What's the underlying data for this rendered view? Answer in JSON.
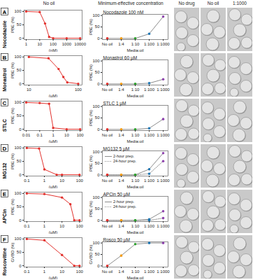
{
  "column_headers": [
    "No oil",
    "Minimum-effective concentration",
    "No drug",
    "No oil",
    "1:1000"
  ],
  "panels": [
    {
      "letter": "A",
      "label": "Nocodazole"
    },
    {
      "letter": "B",
      "label": "Monastrol"
    },
    {
      "letter": "C",
      "label": "STLC"
    },
    {
      "letter": "D",
      "label": "MG132"
    },
    {
      "letter": "E",
      "label": "APCin"
    },
    {
      "letter": "F",
      "label": "Roscovitine"
    }
  ],
  "chart_data": [
    {
      "type": "line",
      "x": [
        1,
        10,
        25,
        50,
        100,
        1000,
        10000
      ],
      "values": [
        100,
        98,
        55,
        5,
        0,
        0,
        0
      ],
      "log": "x",
      "xlim": [
        0.7,
        14000
      ],
      "xticks": [
        1,
        10,
        100,
        1000,
        10000
      ],
      "ylim": [
        -5,
        105
      ],
      "yticks": [
        0,
        50,
        100
      ],
      "xlabel": "(nM)",
      "ylabel": "PBE (%)",
      "color": "#e2312d",
      "marker": "circle"
    },
    {
      "type": "line",
      "categories": [
        "No oil",
        "1:4",
        "1:10",
        "1:100",
        "1:1000"
      ],
      "values": [
        0,
        0,
        0,
        20,
        95
      ],
      "colors": [
        "#e2312d",
        "#f39c12",
        "#2ca02c",
        "#1f77b4",
        "#8e44ad"
      ],
      "color": "#8c8c8c",
      "marker": "circle",
      "annotation": "Nocodazole 100 nM",
      "ylim": [
        -5,
        105
      ],
      "yticks": [
        0,
        50,
        100
      ],
      "xlabel": "Media:oil",
      "ylabel": "PBE (%)"
    },
    {
      "type": "line",
      "x": [
        10,
        25,
        40,
        50,
        60,
        100
      ],
      "values": [
        100,
        95,
        55,
        25,
        5,
        0
      ],
      "log": "x",
      "xlim": [
        8,
        120
      ],
      "xticks": [
        10,
        100
      ],
      "ylim": [
        -5,
        105
      ],
      "yticks": [
        0,
        50,
        100
      ],
      "xlabel": "(µM)",
      "ylabel": "PBE (%)",
      "color": "#e2312d",
      "marker": "circle"
    },
    {
      "type": "line",
      "categories": [
        "No oil",
        "1:4",
        "1:10",
        "1:100",
        "1:1000"
      ],
      "values": [
        0,
        0,
        0,
        3,
        20
      ],
      "colors": [
        "#e2312d",
        "#f39c12",
        "#2ca02c",
        "#1f77b4",
        "#8e44ad"
      ],
      "color": "#8c8c8c",
      "marker": "circle",
      "annotation": "Monastrol 60 µM",
      "ylim": [
        -5,
        105
      ],
      "yticks": [
        0,
        50,
        100
      ],
      "xlabel": "Media:oil",
      "ylabel": "PBE (%)"
    },
    {
      "type": "line",
      "x": [
        0.01,
        0.1,
        0.5,
        1,
        10,
        100
      ],
      "values": [
        100,
        98,
        95,
        5,
        0,
        0
      ],
      "log": "x",
      "xlim": [
        0.007,
        140
      ],
      "xticks": [
        0.01,
        0.1,
        1,
        10,
        100
      ],
      "ylim": [
        -5,
        105
      ],
      "yticks": [
        0,
        50,
        100
      ],
      "xlabel": "(µM)",
      "ylabel": "PBE (%)",
      "color": "#e2312d",
      "marker": "circle"
    },
    {
      "type": "line",
      "categories": [
        "No oil",
        "1:4",
        "1:10",
        "1:100",
        "1:1000"
      ],
      "values": [
        0,
        0,
        0,
        5,
        45
      ],
      "colors": [
        "#e2312d",
        "#f39c12",
        "#2ca02c",
        "#1f77b4",
        "#8e44ad"
      ],
      "color": "#8c8c8c",
      "marker": "circle",
      "annotation": "STLC 1 µM",
      "ylim": [
        -5,
        105
      ],
      "yticks": [
        0,
        50,
        100
      ],
      "xlabel": "Media:oil",
      "ylabel": "PBE (%)"
    },
    {
      "type": "line",
      "x": [
        0.1,
        0.5,
        1,
        5,
        10,
        100
      ],
      "values": [
        100,
        98,
        20,
        0,
        0,
        0
      ],
      "log": "x",
      "xlim": [
        0.07,
        140
      ],
      "xticks": [
        0.1,
        1,
        10,
        100
      ],
      "ylim": [
        -5,
        105
      ],
      "yticks": [
        0,
        50,
        100
      ],
      "xlabel": "(µM)",
      "ylabel": "PBE (%)",
      "color": "#e2312d",
      "marker": "circle"
    },
    {
      "type": "line",
      "categories": [
        "No oil",
        "1:4",
        "1:10",
        "1:100",
        "1:1000"
      ],
      "series": [
        {
          "name": "2-hour prep.",
          "values": [
            0,
            0,
            0,
            25,
            95
          ],
          "line_style": "solid"
        },
        {
          "name": "24-hour prep.",
          "values": [
            0,
            0,
            0,
            5,
            60
          ],
          "line_style": "dotted"
        }
      ],
      "colors": [
        "#e2312d",
        "#f39c12",
        "#2ca02c",
        "#1f77b4",
        "#8e44ad"
      ],
      "color": "#8c8c8c",
      "marker": "circle",
      "legend": "left",
      "annotation": "MG132 5 µM",
      "ylim": [
        -5,
        105
      ],
      "yticks": [
        0,
        50,
        100
      ],
      "xlabel": "Media:oil",
      "ylabel": "PBE (%)"
    },
    {
      "type": "line",
      "x": [
        0.1,
        1,
        10,
        30,
        50,
        100
      ],
      "values": [
        100,
        98,
        85,
        60,
        0,
        0
      ],
      "log": "x",
      "xlim": [
        0.07,
        140
      ],
      "xticks": [
        0.1,
        1,
        10,
        100
      ],
      "ylim": [
        -5,
        105
      ],
      "yticks": [
        0,
        50,
        100
      ],
      "xlabel": "(µM)",
      "ylabel": "PBE (%)",
      "color": "#e2312d",
      "marker": "circle"
    },
    {
      "type": "line",
      "categories": [
        "No oil",
        "1:4",
        "1:10",
        "1:100",
        "1:1000"
      ],
      "series": [
        {
          "name": "2-hour prep.",
          "values": [
            0,
            0,
            0,
            5,
            40
          ],
          "line_style": "solid"
        },
        {
          "name": "24-hour prep.",
          "values": [
            0,
            0,
            0,
            0,
            10
          ],
          "line_style": "dotted"
        }
      ],
      "colors": [
        "#e2312d",
        "#f39c12",
        "#2ca02c",
        "#1f77b4",
        "#8e44ad"
      ],
      "color": "#8c8c8c",
      "marker": "circle",
      "legend": "left",
      "annotation": "APCin 50 µM",
      "ylim": [
        -5,
        105
      ],
      "yticks": [
        0,
        50,
        100
      ],
      "xlabel": "Media:oil",
      "ylabel": "PBE (%)"
    },
    {
      "type": "line",
      "x": [
        0.1,
        1,
        10,
        50,
        100
      ],
      "values": [
        100,
        95,
        40,
        0,
        0
      ],
      "log": "x",
      "xlim": [
        0.07,
        140
      ],
      "xticks": [
        0.1,
        1,
        10,
        100
      ],
      "ylim": [
        -5,
        105
      ],
      "yticks": [
        0,
        50,
        100
      ],
      "xlabel": "(µM)",
      "ylabel": "GVBD (%)",
      "color": "#e2312d",
      "marker": "circle"
    },
    {
      "type": "line",
      "categories": [
        "No oil",
        "1:4",
        "1:10",
        "1:100",
        "1:1000"
      ],
      "values": [
        0,
        45,
        95,
        100,
        100
      ],
      "colors": [
        "#e2312d",
        "#f39c12",
        "#2ca02c",
        "#1f77b4",
        "#8e44ad"
      ],
      "color": "#8c8c8c",
      "marker": "circle",
      "annotation": "Rosco 50 µM",
      "ylim": [
        -5,
        105
      ],
      "yticks": [
        0,
        50,
        100
      ],
      "xlabel": "Media:oil",
      "ylabel": "GVBD (%)"
    }
  ]
}
